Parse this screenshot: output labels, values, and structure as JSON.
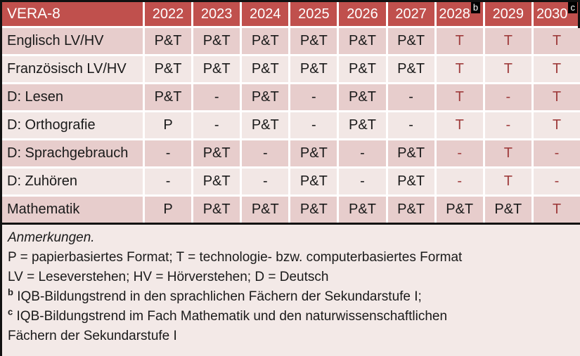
{
  "header": {
    "title": "VERA-8",
    "years": [
      {
        "label": "2022",
        "sup": ""
      },
      {
        "label": "2023",
        "sup": ""
      },
      {
        "label": "2024",
        "sup": ""
      },
      {
        "label": "2025",
        "sup": ""
      },
      {
        "label": "2026",
        "sup": ""
      },
      {
        "label": "2027",
        "sup": ""
      },
      {
        "label": "2028",
        "sup": "b"
      },
      {
        "label": "2029",
        "sup": ""
      },
      {
        "label": "2030",
        "sup": "c"
      }
    ]
  },
  "rows": [
    {
      "subject": "Englisch LV/HV",
      "cells": [
        {
          "v": "P&T",
          "red": false
        },
        {
          "v": "P&T",
          "red": false
        },
        {
          "v": "P&T",
          "red": false
        },
        {
          "v": "P&T",
          "red": false
        },
        {
          "v": "P&T",
          "red": false
        },
        {
          "v": "P&T",
          "red": false
        },
        {
          "v": "T",
          "red": true
        },
        {
          "v": "T",
          "red": true
        },
        {
          "v": "T",
          "red": true
        }
      ]
    },
    {
      "subject": "Französisch LV/HV",
      "cells": [
        {
          "v": "P&T",
          "red": false
        },
        {
          "v": "P&T",
          "red": false
        },
        {
          "v": "P&T",
          "red": false
        },
        {
          "v": "P&T",
          "red": false
        },
        {
          "v": "P&T",
          "red": false
        },
        {
          "v": "P&T",
          "red": false
        },
        {
          "v": "T",
          "red": true
        },
        {
          "v": "T",
          "red": true
        },
        {
          "v": "T",
          "red": true
        }
      ]
    },
    {
      "subject": "D: Lesen",
      "cells": [
        {
          "v": "P&T",
          "red": false
        },
        {
          "v": "-",
          "red": false
        },
        {
          "v": "P&T",
          "red": false
        },
        {
          "v": "-",
          "red": false
        },
        {
          "v": "P&T",
          "red": false
        },
        {
          "v": "-",
          "red": false
        },
        {
          "v": "T",
          "red": true
        },
        {
          "v": "-",
          "red": true
        },
        {
          "v": "T",
          "red": true
        }
      ]
    },
    {
      "subject": "D: Orthografie",
      "cells": [
        {
          "v": "P",
          "red": false
        },
        {
          "v": "-",
          "red": false
        },
        {
          "v": "P&T",
          "red": false
        },
        {
          "v": "-",
          "red": false
        },
        {
          "v": "P&T",
          "red": false
        },
        {
          "v": "-",
          "red": false
        },
        {
          "v": "T",
          "red": true
        },
        {
          "v": "-",
          "red": true
        },
        {
          "v": "T",
          "red": true
        }
      ]
    },
    {
      "subject": "D: Sprachgebrauch",
      "cells": [
        {
          "v": "-",
          "red": false
        },
        {
          "v": "P&T",
          "red": false
        },
        {
          "v": "-",
          "red": false
        },
        {
          "v": "P&T",
          "red": false
        },
        {
          "v": "-",
          "red": false
        },
        {
          "v": "P&T",
          "red": false
        },
        {
          "v": "-",
          "red": true
        },
        {
          "v": "T",
          "red": true
        },
        {
          "v": "-",
          "red": true
        }
      ]
    },
    {
      "subject": "D: Zuhören",
      "cells": [
        {
          "v": "-",
          "red": false
        },
        {
          "v": "P&T",
          "red": false
        },
        {
          "v": "-",
          "red": false
        },
        {
          "v": "P&T",
          "red": false
        },
        {
          "v": "-",
          "red": false
        },
        {
          "v": "P&T",
          "red": false
        },
        {
          "v": "-",
          "red": true
        },
        {
          "v": "T",
          "red": true
        },
        {
          "v": "-",
          "red": true
        }
      ]
    },
    {
      "subject": "Mathematik",
      "cells": [
        {
          "v": "P",
          "red": false
        },
        {
          "v": "P&T",
          "red": false
        },
        {
          "v": "P&T",
          "red": false
        },
        {
          "v": "P&T",
          "red": false
        },
        {
          "v": "P&T",
          "red": false
        },
        {
          "v": "P&T",
          "red": false
        },
        {
          "v": "P&T",
          "red": false
        },
        {
          "v": "P&T",
          "red": false
        },
        {
          "v": "T",
          "red": true
        }
      ]
    }
  ],
  "notes": {
    "lines": [
      {
        "segments": [
          {
            "text": "Anmerkungen.",
            "italic": true,
            "sup": false
          }
        ]
      },
      {
        "segments": [
          {
            "text": "P = papierbasiertes Format; T = technologie- bzw. computerbasiertes Format",
            "italic": false,
            "sup": false
          }
        ]
      },
      {
        "segments": [
          {
            "text": "LV = Leseverstehen; HV = Hörverstehen; D = Deutsch",
            "italic": false,
            "sup": false
          }
        ]
      },
      {
        "segments": [
          {
            "text": "b",
            "italic": false,
            "sup": true
          },
          {
            "text": " IQB-Bildungstrend in den sprachlichen Fächern der Sekundarstufe I;",
            "italic": false,
            "sup": false
          }
        ]
      },
      {
        "segments": [
          {
            "text": "c",
            "italic": false,
            "sup": true
          },
          {
            "text": " IQB-Bildungstrend im Fach Mathematik und den naturwissenschaftlichen",
            "italic": false,
            "sup": false
          }
        ]
      },
      {
        "segments": [
          {
            "text": "Fächern der Sekundarstufe I",
            "italic": false,
            "sup": false
          }
        ]
      }
    ]
  },
  "colors": {
    "header_bg": "#C0504D",
    "header_text": "#FFFFFF",
    "row_dark": "#E7CDCC",
    "row_light": "#F2E7E5",
    "notes_bg": "#F3E9E7",
    "red_text": "#9E3B3B",
    "text": "#1A1A1A",
    "border": "#111111",
    "sup_box_bg": "#000000"
  }
}
